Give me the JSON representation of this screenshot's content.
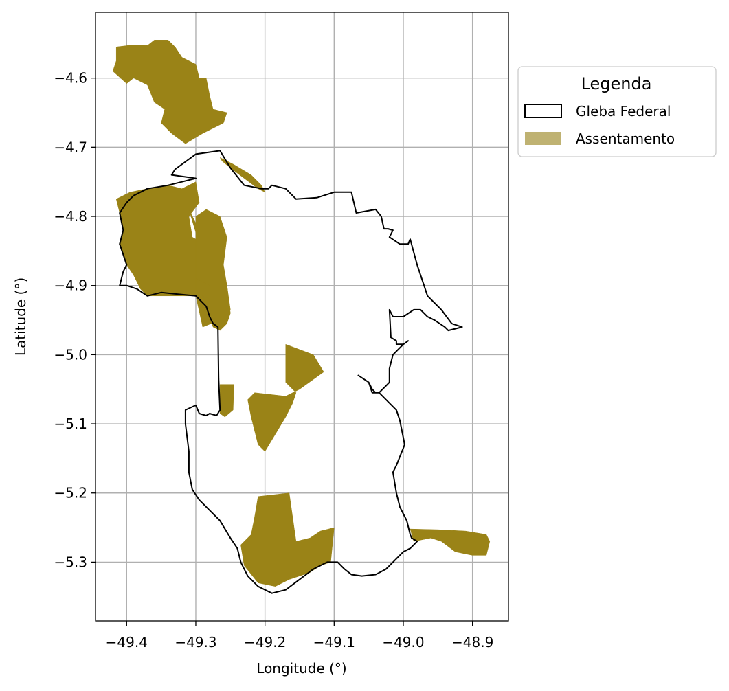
{
  "map": {
    "xlabel": "Longitude (°)",
    "ylabel": "Latitude (°)",
    "xlim": [
      -49.445,
      -48.848
    ],
    "ylim": [
      -5.385,
      -4.505
    ],
    "xticks": [
      -49.4,
      -49.3,
      -49.2,
      -49.1,
      -49.0,
      -48.9
    ],
    "xtick_labels": [
      "−49.4",
      "−49.3",
      "−49.2",
      "−49.1",
      "−49.0",
      "−48.9"
    ],
    "yticks": [
      -4.6,
      -4.7,
      -4.8,
      -4.9,
      -5.0,
      -5.1,
      -5.2,
      -5.3
    ],
    "ytick_labels": [
      "−4.6",
      "−4.7",
      "−4.8",
      "−4.9",
      "−5.0",
      "−5.1",
      "−5.2",
      "−5.3"
    ],
    "grid": true
  },
  "legend": {
    "title": "Legenda",
    "placement": "outside-right-top",
    "items": [
      {
        "label": "Gleba Federal",
        "style": "outline"
      },
      {
        "label": "Assentamento",
        "style": "fill"
      }
    ]
  },
  "colors": {
    "assentamento_fill": "#9a8317",
    "assentamento_legend": "#bfb272",
    "gleba_outline": "#000000",
    "grid": "#b0b0b0"
  },
  "gleba_federal": [
    [
      -49.33,
      -4.732
    ],
    [
      -49.3,
      -4.71
    ],
    [
      -49.265,
      -4.705
    ],
    [
      -49.25,
      -4.73
    ],
    [
      -49.23,
      -4.755
    ],
    [
      -49.205,
      -4.76
    ],
    [
      -49.195,
      -4.76
    ],
    [
      -49.19,
      -4.755
    ],
    [
      -49.17,
      -4.76
    ],
    [
      -49.155,
      -4.775
    ],
    [
      -49.125,
      -4.773
    ],
    [
      -49.1,
      -4.765
    ],
    [
      -49.075,
      -4.765
    ],
    [
      -49.068,
      -4.795
    ],
    [
      -49.04,
      -4.79
    ],
    [
      -49.032,
      -4.8
    ],
    [
      -49.028,
      -4.818
    ],
    [
      -49.022,
      -4.818
    ],
    [
      -49.015,
      -4.82
    ],
    [
      -49.02,
      -4.83
    ],
    [
      -49.005,
      -4.84
    ],
    [
      -48.993,
      -4.84
    ],
    [
      -48.99,
      -4.833
    ],
    [
      -48.98,
      -4.87
    ],
    [
      -48.965,
      -4.915
    ],
    [
      -48.945,
      -4.935
    ],
    [
      -48.93,
      -4.955
    ],
    [
      -48.915,
      -4.96
    ],
    [
      -48.935,
      -4.965
    ],
    [
      -48.94,
      -4.96
    ],
    [
      -48.955,
      -4.95
    ],
    [
      -48.965,
      -4.945
    ],
    [
      -48.975,
      -4.935
    ],
    [
      -48.985,
      -4.935
    ],
    [
      -49.0,
      -4.945
    ],
    [
      -49.015,
      -4.945
    ],
    [
      -49.02,
      -4.935
    ],
    [
      -49.018,
      -4.975
    ],
    [
      -49.01,
      -4.98
    ],
    [
      -49.01,
      -4.985
    ],
    [
      -49.0,
      -4.985
    ],
    [
      -48.993,
      -4.98
    ],
    [
      -49.0,
      -4.985
    ],
    [
      -49.015,
      -5.0
    ],
    [
      -49.02,
      -5.02
    ],
    [
      -49.02,
      -5.04
    ],
    [
      -49.025,
      -5.045
    ],
    [
      -49.035,
      -5.055
    ],
    [
      -49.04,
      -5.055
    ],
    [
      -49.045,
      -5.05
    ],
    [
      -49.05,
      -5.04
    ],
    [
      -49.065,
      -5.03
    ],
    [
      -49.05,
      -5.04
    ],
    [
      -49.045,
      -5.055
    ],
    [
      -49.035,
      -5.055
    ],
    [
      -49.025,
      -5.065
    ],
    [
      -49.01,
      -5.08
    ],
    [
      -49.005,
      -5.095
    ],
    [
      -48.998,
      -5.13
    ],
    [
      -49.01,
      -5.16
    ],
    [
      -49.015,
      -5.17
    ],
    [
      -49.01,
      -5.2
    ],
    [
      -49.005,
      -5.22
    ],
    [
      -48.995,
      -5.24
    ],
    [
      -48.99,
      -5.26
    ],
    [
      -48.988,
      -5.265
    ],
    [
      -48.98,
      -5.27
    ],
    [
      -48.985,
      -5.275
    ],
    [
      -48.99,
      -5.28
    ],
    [
      -49.0,
      -5.285
    ],
    [
      -49.015,
      -5.3
    ],
    [
      -49.025,
      -5.31
    ],
    [
      -49.04,
      -5.318
    ],
    [
      -49.06,
      -5.32
    ],
    [
      -49.075,
      -5.318
    ],
    [
      -49.085,
      -5.31
    ],
    [
      -49.095,
      -5.3
    ],
    [
      -49.11,
      -5.3
    ],
    [
      -49.13,
      -5.31
    ],
    [
      -49.15,
      -5.325
    ],
    [
      -49.17,
      -5.34
    ],
    [
      -49.19,
      -5.345
    ],
    [
      -49.21,
      -5.335
    ],
    [
      -49.225,
      -5.32
    ],
    [
      -49.235,
      -5.3
    ],
    [
      -49.24,
      -5.28
    ],
    [
      -49.25,
      -5.265
    ],
    [
      -49.265,
      -5.24
    ],
    [
      -49.28,
      -5.225
    ],
    [
      -49.295,
      -5.21
    ],
    [
      -49.305,
      -5.195
    ],
    [
      -49.31,
      -5.17
    ],
    [
      -49.31,
      -5.14
    ],
    [
      -49.315,
      -5.1
    ],
    [
      -49.315,
      -5.08
    ],
    [
      -49.3,
      -5.073
    ],
    [
      -49.295,
      -5.085
    ],
    [
      -49.285,
      -5.088
    ],
    [
      -49.28,
      -5.085
    ],
    [
      -49.27,
      -5.088
    ],
    [
      -49.265,
      -5.08
    ],
    [
      -49.267,
      -5.035
    ],
    [
      -49.268,
      -4.96
    ],
    [
      -49.275,
      -4.955
    ],
    [
      -49.28,
      -4.945
    ],
    [
      -49.285,
      -4.93
    ],
    [
      -49.3,
      -4.915
    ],
    [
      -49.35,
      -4.91
    ],
    [
      -49.37,
      -4.915
    ],
    [
      -49.385,
      -4.905
    ],
    [
      -49.4,
      -4.9
    ],
    [
      -49.41,
      -4.9
    ],
    [
      -49.405,
      -4.88
    ],
    [
      -49.4,
      -4.87
    ],
    [
      -49.41,
      -4.84
    ],
    [
      -49.405,
      -4.82
    ],
    [
      -49.41,
      -4.795
    ],
    [
      -49.4,
      -4.78
    ],
    [
      -49.39,
      -4.77
    ],
    [
      -49.37,
      -4.76
    ],
    [
      -49.34,
      -4.755
    ],
    [
      -49.32,
      -4.75
    ],
    [
      -49.3,
      -4.745
    ],
    [
      -49.335,
      -4.74
    ],
    [
      -49.33,
      -4.732
    ]
  ],
  "assentamentos": [
    [
      [
        -49.415,
        -4.555
      ],
      [
        -49.39,
        -4.552
      ],
      [
        -49.37,
        -4.553
      ],
      [
        -49.36,
        -4.545
      ],
      [
        -49.34,
        -4.545
      ],
      [
        -49.33,
        -4.555
      ],
      [
        -49.32,
        -4.57
      ],
      [
        -49.31,
        -4.575
      ],
      [
        -49.3,
        -4.58
      ],
      [
        -49.295,
        -4.6
      ],
      [
        -49.285,
        -4.6
      ],
      [
        -49.28,
        -4.625
      ],
      [
        -49.275,
        -4.645
      ],
      [
        -49.255,
        -4.65
      ],
      [
        -49.26,
        -4.665
      ],
      [
        -49.29,
        -4.68
      ],
      [
        -49.315,
        -4.695
      ],
      [
        -49.335,
        -4.68
      ],
      [
        -49.35,
        -4.665
      ],
      [
        -49.345,
        -4.645
      ],
      [
        -49.36,
        -4.635
      ],
      [
        -49.37,
        -4.61
      ],
      [
        -49.39,
        -4.6
      ],
      [
        -49.4,
        -4.608
      ],
      [
        -49.42,
        -4.59
      ],
      [
        -49.415,
        -4.575
      ]
    ],
    [
      [
        -49.415,
        -4.775
      ],
      [
        -49.395,
        -4.765
      ],
      [
        -49.37,
        -4.76
      ],
      [
        -49.34,
        -4.755
      ],
      [
        -49.32,
        -4.76
      ],
      [
        -49.3,
        -4.75
      ],
      [
        -49.295,
        -4.78
      ],
      [
        -49.31,
        -4.8
      ],
      [
        -49.305,
        -4.83
      ],
      [
        -49.27,
        -4.85
      ],
      [
        -49.26,
        -4.87
      ],
      [
        -49.255,
        -4.9
      ],
      [
        -49.25,
        -4.935
      ],
      [
        -49.265,
        -4.95
      ],
      [
        -49.29,
        -4.96
      ],
      [
        -49.3,
        -4.915
      ],
      [
        -49.35,
        -4.915
      ],
      [
        -49.37,
        -4.915
      ],
      [
        -49.38,
        -4.905
      ],
      [
        -49.39,
        -4.885
      ],
      [
        -49.4,
        -4.87
      ],
      [
        -49.41,
        -4.84
      ],
      [
        -49.405,
        -4.82
      ],
      [
        -49.41,
        -4.795
      ]
    ],
    [
      [
        -49.31,
        -4.79
      ],
      [
        -49.295,
        -4.84
      ],
      [
        -49.3,
        -4.88
      ],
      [
        -49.3,
        -4.91
      ],
      [
        -49.28,
        -4.92
      ],
      [
        -49.27,
        -4.935
      ],
      [
        -49.28,
        -4.945
      ],
      [
        -49.275,
        -4.96
      ],
      [
        -49.265,
        -4.965
      ],
      [
        -49.255,
        -4.955
      ],
      [
        -49.25,
        -4.94
      ],
      [
        -49.255,
        -4.9
      ],
      [
        -49.262,
        -4.87
      ],
      [
        -49.272,
        -4.85
      ],
      [
        -49.29,
        -4.83
      ],
      [
        -49.3,
        -4.81
      ]
    ],
    [
      [
        -49.3,
        -4.8
      ],
      [
        -49.285,
        -4.79
      ],
      [
        -49.265,
        -4.8
      ],
      [
        -49.255,
        -4.83
      ],
      [
        -49.26,
        -4.87
      ],
      [
        -49.28,
        -4.9
      ],
      [
        -49.3,
        -4.89
      ]
    ],
    [
      [
        -49.265,
        -4.715
      ],
      [
        -49.245,
        -4.725
      ],
      [
        -49.22,
        -4.74
      ],
      [
        -49.205,
        -4.755
      ],
      [
        -49.2,
        -4.765
      ],
      [
        -49.21,
        -4.76
      ],
      [
        -49.23,
        -4.745
      ],
      [
        -49.25,
        -4.73
      ],
      [
        -49.262,
        -4.72
      ]
    ],
    [
      [
        -49.265,
        -5.043
      ],
      [
        -49.245,
        -5.043
      ],
      [
        -49.246,
        -5.08
      ],
      [
        -49.258,
        -5.09
      ],
      [
        -49.265,
        -5.085
      ]
    ],
    [
      [
        -49.17,
        -4.985
      ],
      [
        -49.13,
        -5.0
      ],
      [
        -49.115,
        -5.025
      ],
      [
        -49.15,
        -5.05
      ],
      [
        -49.17,
        -5.06
      ],
      [
        -49.215,
        -5.055
      ],
      [
        -49.225,
        -5.065
      ],
      [
        -49.22,
        -5.09
      ],
      [
        -49.21,
        -5.13
      ],
      [
        -49.2,
        -5.14
      ],
      [
        -49.185,
        -5.115
      ],
      [
        -49.17,
        -5.09
      ],
      [
        -49.16,
        -5.07
      ],
      [
        -49.155,
        -5.055
      ],
      [
        -49.17,
        -5.04
      ]
    ],
    [
      [
        -49.165,
        -5.2
      ],
      [
        -49.21,
        -5.205
      ],
      [
        -49.215,
        -5.235
      ],
      [
        -49.22,
        -5.26
      ],
      [
        -49.235,
        -5.275
      ],
      [
        -49.23,
        -5.305
      ],
      [
        -49.21,
        -5.33
      ],
      [
        -49.185,
        -5.335
      ],
      [
        -49.165,
        -5.325
      ],
      [
        -49.135,
        -5.315
      ],
      [
        -49.12,
        -5.305
      ],
      [
        -49.105,
        -5.3
      ],
      [
        -49.1,
        -5.25
      ],
      [
        -49.12,
        -5.255
      ],
      [
        -49.135,
        -5.265
      ],
      [
        -49.155,
        -5.27
      ],
      [
        -49.16,
        -5.235
      ]
    ],
    [
      [
        -48.99,
        -5.252
      ],
      [
        -48.95,
        -5.253
      ],
      [
        -48.91,
        -5.255
      ],
      [
        -48.88,
        -5.26
      ],
      [
        -48.875,
        -5.27
      ],
      [
        -48.88,
        -5.29
      ],
      [
        -48.9,
        -5.29
      ],
      [
        -48.925,
        -5.285
      ],
      [
        -48.945,
        -5.27
      ],
      [
        -48.96,
        -5.265
      ],
      [
        -48.985,
        -5.27
      ]
    ]
  ]
}
